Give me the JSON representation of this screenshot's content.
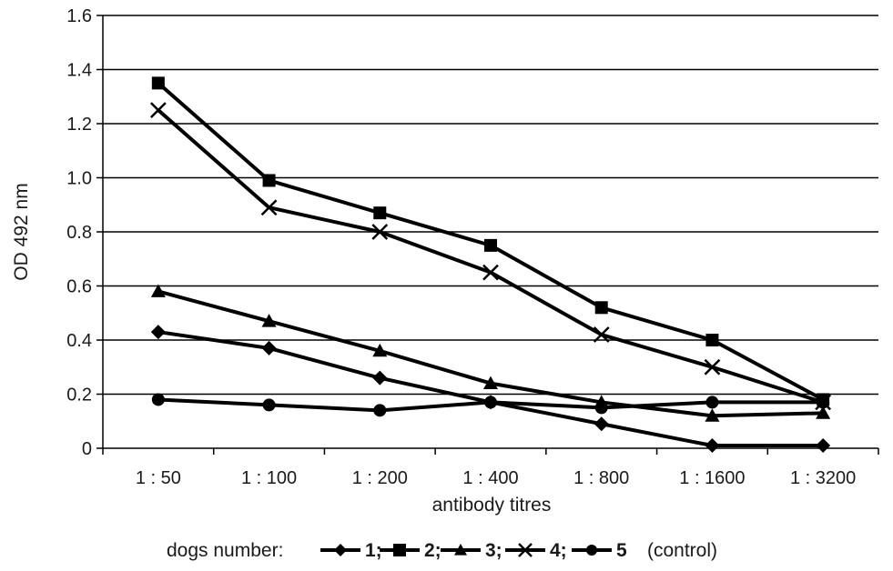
{
  "chart_data": {
    "type": "line",
    "xlabel": "antibody titres",
    "ylabel": "OD 492 nm",
    "categories": [
      "1 : 50",
      "1 : 100",
      "1 : 200",
      "1 : 400",
      "1 : 800",
      "1 : 1600",
      "1 : 3200"
    ],
    "yticks": [
      "0",
      "0.2",
      "0.4",
      "0.6",
      "0.8",
      "1.0",
      "1.2",
      "1.4",
      "1.6"
    ],
    "ylim": [
      0,
      1.6
    ],
    "grid": "horizontal",
    "legend": {
      "position": "bottom",
      "prefix": "dogs number:",
      "suffix": "(control)"
    },
    "series": [
      {
        "name": "1;",
        "marker": "diamond",
        "values": [
          0.43,
          0.37,
          0.26,
          0.17,
          0.09,
          0.01,
          0.01
        ]
      },
      {
        "name": "2;",
        "marker": "square",
        "values": [
          1.35,
          0.99,
          0.87,
          0.75,
          0.52,
          0.4,
          0.18
        ]
      },
      {
        "name": "3;",
        "marker": "triangle",
        "values": [
          0.58,
          0.47,
          0.36,
          0.24,
          0.17,
          0.12,
          0.13
        ]
      },
      {
        "name": "4;",
        "marker": "x",
        "values": [
          1.25,
          0.89,
          0.8,
          0.65,
          0.42,
          0.3,
          0.17
        ]
      },
      {
        "name": "5",
        "marker": "circle",
        "values": [
          0.18,
          0.16,
          0.14,
          0.17,
          0.15,
          0.17,
          0.17
        ]
      }
    ]
  }
}
